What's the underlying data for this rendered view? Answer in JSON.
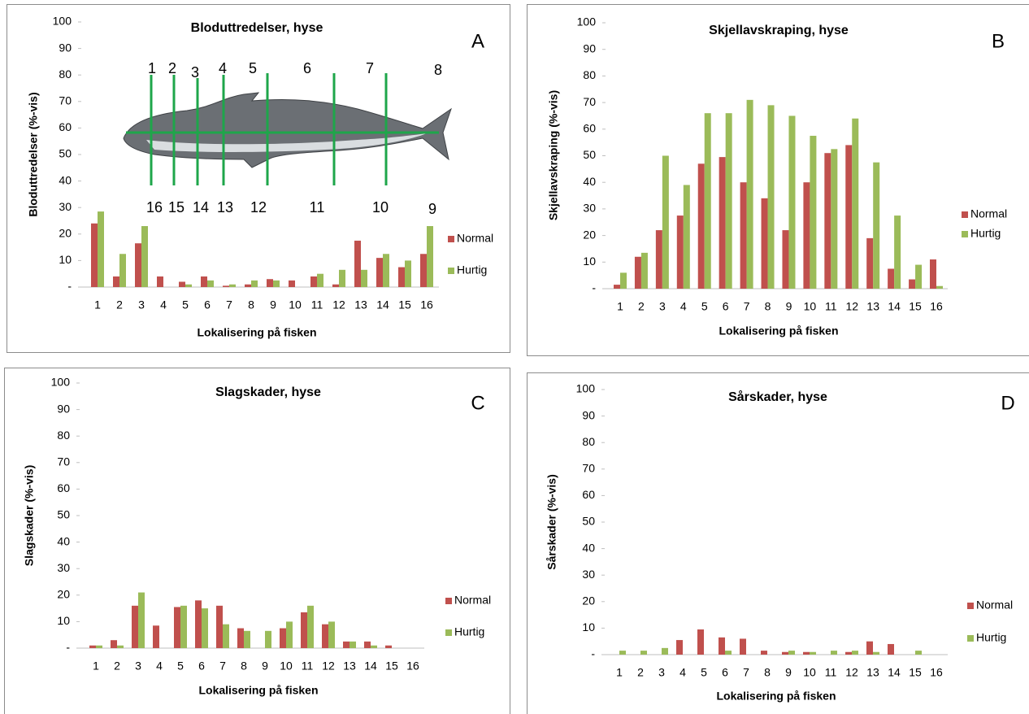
{
  "chart_data": [
    {
      "type": "bar",
      "panel_label": "A",
      "title": "Bloduttredelser, hyse",
      "x_label": "Lokalisering på fisken",
      "y_label": "Bloduttredelser (%-vis)",
      "categories": [
        "1",
        "2",
        "3",
        "4",
        "5",
        "6",
        "7",
        "8",
        "9",
        "10",
        "11",
        "12",
        "13",
        "14",
        "15",
        "16"
      ],
      "series": [
        {
          "name": "Normal",
          "color": "#c0504d",
          "values": [
            24,
            4,
            16.5,
            4,
            2,
            4,
            0.5,
            1,
            3,
            2.5,
            4,
            1,
            17.5,
            11,
            7.5,
            12.5
          ]
        },
        {
          "name": "Hurtig",
          "color": "#9bbb59",
          "values": [
            28.5,
            12.5,
            23,
            0,
            1,
            2.5,
            1,
            2.5,
            2.5,
            0,
            5,
            6.5,
            6.5,
            12.5,
            10,
            23
          ]
        }
      ],
      "ylim": [
        0,
        100
      ],
      "yticks": [
        {
          "value": 0,
          "label": "-"
        },
        10,
        20,
        30,
        40,
        50,
        60,
        70,
        80,
        90,
        100
      ],
      "grid": false,
      "legend": "right",
      "section_labels_top": [
        "1",
        "2",
        "3",
        "4",
        "5",
        "6",
        "7",
        "8"
      ],
      "section_labels_bottom": [
        "16",
        "15",
        "14",
        "13",
        "12",
        "11",
        "10",
        "9"
      ]
    },
    {
      "type": "bar",
      "panel_label": "B",
      "title": "Skjellavskraping, hyse",
      "x_label": "Lokalisering på fisken",
      "y_label": "Skjellavskraping (%-vis)",
      "categories": [
        "1",
        "2",
        "3",
        "4",
        "5",
        "6",
        "7",
        "8",
        "9",
        "10",
        "11",
        "12",
        "13",
        "14",
        "15",
        "16"
      ],
      "series": [
        {
          "name": "Normal",
          "color": "#c0504d",
          "values": [
            1.5,
            12,
            22,
            27.5,
            47,
            49.5,
            40,
            34,
            22,
            40,
            51,
            54,
            19,
            7.5,
            3.5,
            11
          ]
        },
        {
          "name": "Hurtig",
          "color": "#9bbb59",
          "values": [
            6,
            13.5,
            50,
            39,
            66,
            66,
            71,
            69,
            65,
            57.5,
            52.5,
            64,
            47.5,
            27.5,
            9,
            1
          ]
        }
      ],
      "ylim": [
        0,
        100
      ],
      "yticks": [
        {
          "value": 0,
          "label": "-"
        },
        10,
        20,
        30,
        40,
        50,
        60,
        70,
        80,
        90,
        100
      ],
      "grid": false,
      "legend": "right"
    },
    {
      "type": "bar",
      "panel_label": "C",
      "title": "Slagskader, hyse",
      "x_label": "Lokalisering på fisken",
      "y_label": "Slagskader (%-vis)",
      "categories": [
        "1",
        "2",
        "3",
        "4",
        "5",
        "6",
        "7",
        "8",
        "9",
        "10",
        "11",
        "12",
        "13",
        "14",
        "15",
        "16"
      ],
      "series": [
        {
          "name": "Normal",
          "color": "#c0504d",
          "values": [
            1,
            3,
            16,
            8.5,
            15.5,
            18,
            16,
            7.5,
            0,
            7.5,
            13.5,
            9,
            2.5,
            2.5,
            1,
            0
          ]
        },
        {
          "name": "Hurtig",
          "color": "#9bbb59",
          "values": [
            1,
            1,
            21,
            0,
            16,
            15,
            9,
            6.5,
            6.5,
            10,
            16,
            10,
            2.5,
            1,
            0,
            0
          ]
        }
      ],
      "ylim": [
        0,
        100
      ],
      "yticks": [
        {
          "value": 0,
          "label": "-"
        },
        10,
        20,
        30,
        40,
        50,
        60,
        70,
        80,
        90,
        100
      ],
      "grid": false,
      "legend": "right"
    },
    {
      "type": "bar",
      "panel_label": "D",
      "title": "Sårskader, hyse",
      "x_label": "Lokalisering på fisken",
      "y_label": "Sårskader (%-vis)",
      "categories": [
        "1",
        "2",
        "3",
        "4",
        "5",
        "6",
        "7",
        "8",
        "9",
        "10",
        "11",
        "12",
        "13",
        "14",
        "15",
        "16"
      ],
      "series": [
        {
          "name": "Normal",
          "color": "#c0504d",
          "values": [
            0,
            0,
            0,
            5.5,
            9.5,
            6.5,
            6,
            1.5,
            1,
            1,
            0,
            1,
            5,
            4,
            0,
            0
          ]
        },
        {
          "name": "Hurtig",
          "color": "#9bbb59",
          "values": [
            1.5,
            1.5,
            2.5,
            0,
            0,
            1.5,
            0,
            0,
            1.5,
            1,
            1.5,
            1.5,
            1,
            0,
            1.5,
            0
          ]
        }
      ],
      "ylim": [
        0,
        100
      ],
      "yticks": [
        {
          "value": 0,
          "label": "-"
        },
        10,
        20,
        30,
        40,
        50,
        60,
        70,
        80,
        90,
        100
      ],
      "grid": false,
      "legend": "right"
    }
  ]
}
